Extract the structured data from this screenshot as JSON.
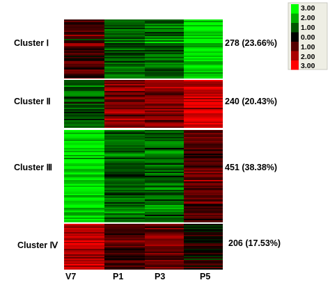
{
  "chart_data": {
    "type": "heatmap",
    "columns": [
      "V7",
      "P1",
      "P3",
      "P5"
    ],
    "clusters": [
      {
        "label": "Cluster Ⅰ",
        "summary": "278 (23.66%)",
        "genes": 278,
        "percent": 23.66,
        "mean_values": [
          0.8,
          -1.3,
          -1.3,
          -2.6
        ]
      },
      {
        "label": "Cluster Ⅱ",
        "summary": "240 (20.43%)",
        "genes": 240,
        "percent": 20.43,
        "mean_values": [
          -0.9,
          1.6,
          1.5,
          2.4
        ]
      },
      {
        "label": "Cluster Ⅲ",
        "summary": "451 (38.38%)",
        "genes": 451,
        "percent": 38.38,
        "mean_values": [
          -2.6,
          -1.2,
          -1.3,
          0.9
        ]
      },
      {
        "label": "Cluster Ⅳ",
        "summary": "206 (17.53%)",
        "genes": 206,
        "percent": 17.53,
        "mean_values": [
          2.2,
          0.9,
          1.1,
          0.1
        ]
      }
    ],
    "legend": {
      "ticks": [
        "3.00",
        "2.00",
        "1.00",
        "0.00",
        "1.00",
        "2.00",
        "3.00"
      ],
      "range": [
        -3,
        3
      ],
      "low_color": "#00ff00",
      "mid_color": "#000000",
      "high_color": "#ff0000"
    }
  }
}
